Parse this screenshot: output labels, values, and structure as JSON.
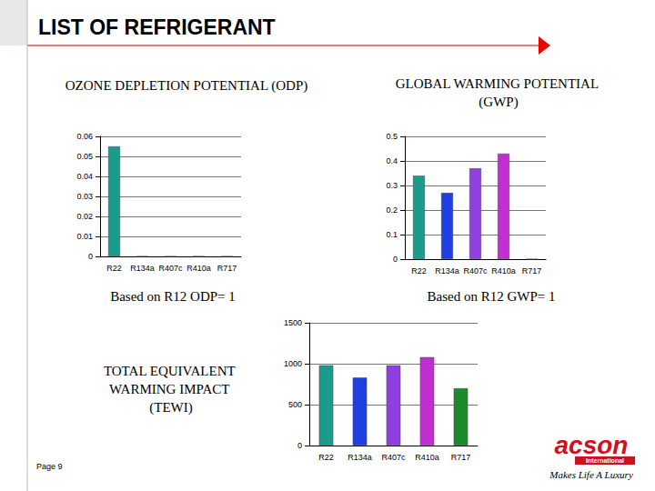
{
  "page": {
    "title": "LIST OF REFRIGERANT",
    "footer": "Page 9",
    "logo": {
      "name": "acson",
      "subtitle": "International",
      "slogan": "Makes Life A Luxury"
    }
  },
  "chart_data": [
    {
      "type": "bar",
      "title": "OZONE DEPLETION POTENTIAL (ODP)",
      "annotation": "Based on R12 ODP= 1",
      "categories": [
        "R22",
        "R134a",
        "R407c",
        "R410a",
        "R717"
      ],
      "values": [
        0.055,
        0,
        0,
        0,
        0
      ],
      "colors": [
        "#1a9c8c",
        "#1f3fe0",
        "#9040e0",
        "#c030d0",
        "#1a8a2a"
      ],
      "ylim": [
        0,
        0.06
      ],
      "yticks": [
        0,
        0.01,
        0.02,
        0.03,
        0.04,
        0.05,
        0.06
      ],
      "grid": true
    },
    {
      "type": "bar",
      "title": "GLOBAL WARMING POTENTIAL (GWP)",
      "annotation": "Based on R12 GWP= 1",
      "categories": [
        "R22",
        "R134a",
        "R407c",
        "R410a",
        "R717"
      ],
      "values": [
        0.34,
        0.27,
        0.37,
        0.43,
        0
      ],
      "colors": [
        "#1a9c8c",
        "#1f3fe0",
        "#9040e0",
        "#c030d0",
        "#1a8a2a"
      ],
      "ylim": [
        0,
        0.5
      ],
      "yticks": [
        0,
        0.1,
        0.2,
        0.3,
        0.4,
        0.5
      ],
      "grid": true
    },
    {
      "type": "bar",
      "title": "TOTAL EQUIVALENT WARMING IMPACT (TEWI)",
      "categories": [
        "R22",
        "R134a",
        "R407c",
        "R410a",
        "R717"
      ],
      "values": [
        980,
        830,
        980,
        1080,
        700
      ],
      "colors": [
        "#1a9c8c",
        "#1f3fe0",
        "#9040e0",
        "#c030d0",
        "#1a8a2a"
      ],
      "ylim": [
        0,
        1500
      ],
      "yticks": [
        0,
        500,
        1000,
        1500
      ],
      "grid": true
    }
  ]
}
